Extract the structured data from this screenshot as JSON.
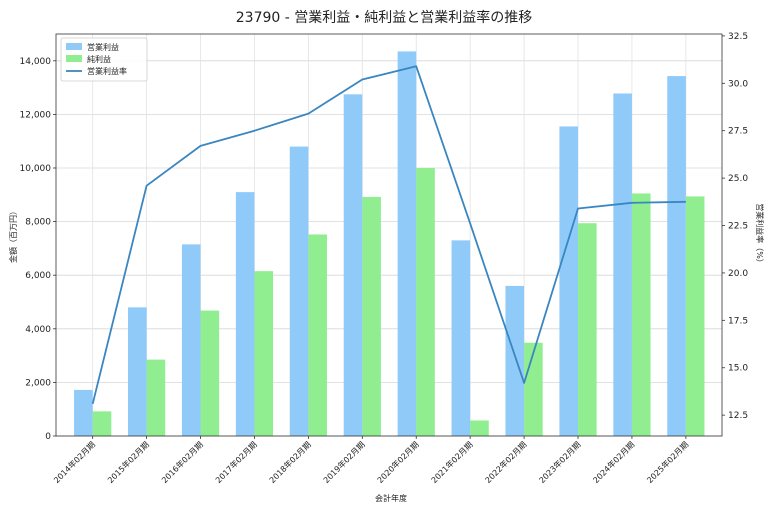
{
  "chart_data": {
    "type": "bar",
    "title": "23790 - 営業利益・純利益と営業利益率の推移",
    "xlabel": "会計年度",
    "ylabel": "金額（百万円）",
    "y2label": "営業利益率（%）",
    "categories": [
      "2014年02月期",
      "2015年02月期",
      "2016年02月期",
      "2017年02月期",
      "2018年02月期",
      "2019年02月期",
      "2020年02月期",
      "2021年02月期",
      "2022年02月期",
      "2023年02月期",
      "2024年02月期",
      "2025年02月期"
    ],
    "series": [
      {
        "name": "営業利益",
        "type": "bar",
        "axis": "left",
        "color": "#90caf9",
        "values": [
          1720,
          4800,
          7150,
          9100,
          10800,
          12750,
          14350,
          7300,
          5600,
          11550,
          12780,
          13430
        ]
      },
      {
        "name": "純利益",
        "type": "bar",
        "axis": "left",
        "color": "#90ee90",
        "values": [
          920,
          2850,
          4680,
          6150,
          7520,
          8920,
          10000,
          580,
          3480,
          7940,
          9050,
          8940
        ]
      },
      {
        "name": "営業利益率",
        "type": "line",
        "axis": "right",
        "color": "#3a86c0",
        "values": [
          13.1,
          24.6,
          26.7,
          27.5,
          28.4,
          30.2,
          30.9,
          22.6,
          14.2,
          23.4,
          23.7,
          23.75
        ]
      }
    ],
    "ylim": [
      0,
      15000
    ],
    "yticks": [
      0,
      2000,
      4000,
      6000,
      8000,
      10000,
      12000,
      14000
    ],
    "y2lim": [
      11.4,
      32.6
    ],
    "y2ticks": [
      12.5,
      15.0,
      17.5,
      20.0,
      22.5,
      25.0,
      27.5,
      30.0,
      32.5
    ],
    "grid": true,
    "legend": "top-left"
  }
}
